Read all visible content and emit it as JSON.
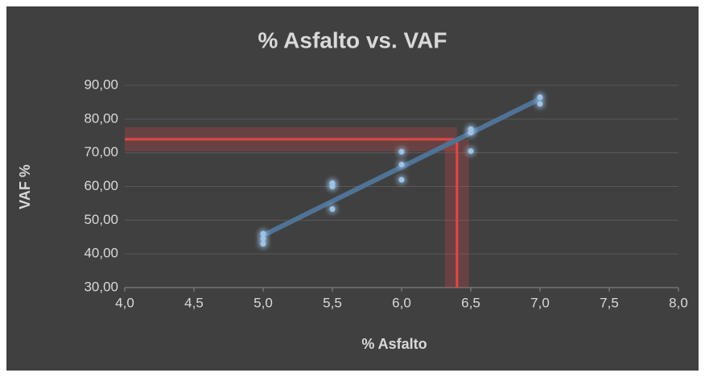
{
  "chart_data": {
    "type": "scatter",
    "title": "% Asfalto vs. VAF",
    "x_label": "% Asfalto",
    "y_label": "VAF %",
    "series": [
      {
        "name": "VAF",
        "color": "#9dc3e6",
        "x": [
          5.0,
          5.0,
          5.0,
          5.5,
          5.5,
          5.5,
          6.0,
          6.0,
          6.0,
          6.5,
          6.5,
          6.5,
          7.0,
          7.0
        ],
        "values": [
          46.0,
          44.5,
          43.0,
          61.0,
          60.0,
          53.3,
          70.3,
          66.5,
          62.0,
          77.0,
          76.0,
          70.5,
          86.5,
          84.5
        ]
      }
    ],
    "trendline": {
      "color": "#4f7396",
      "x": [
        5.0,
        7.0
      ],
      "values": [
        45.5,
        86.0
      ]
    },
    "reference": {
      "color": "#e04848",
      "x": 6.4,
      "y": 74
    },
    "xlim": [
      4.0,
      8.0
    ],
    "xticks": [
      {
        "value": 4.0,
        "label": "4,0"
      },
      {
        "value": 4.5,
        "label": "4,5"
      },
      {
        "value": 5.0,
        "label": "5,0"
      },
      {
        "value": 5.5,
        "label": "5,5"
      },
      {
        "value": 6.0,
        "label": "6,0"
      },
      {
        "value": 6.5,
        "label": "6,5"
      },
      {
        "value": 7.0,
        "label": "7,0"
      },
      {
        "value": 7.5,
        "label": "7,5"
      },
      {
        "value": 8.0,
        "label": "8,0"
      }
    ],
    "ylim": [
      30,
      90
    ],
    "yticks": [
      {
        "value": 30,
        "label": "30,00"
      },
      {
        "value": 40,
        "label": "40,00"
      },
      {
        "value": 50,
        "label": "50,00"
      },
      {
        "value": 60,
        "label": "60,00"
      },
      {
        "value": 70,
        "label": "70,00"
      },
      {
        "value": 80,
        "label": "80,00"
      },
      {
        "value": 90,
        "label": "90,00"
      }
    ],
    "grid": true
  }
}
